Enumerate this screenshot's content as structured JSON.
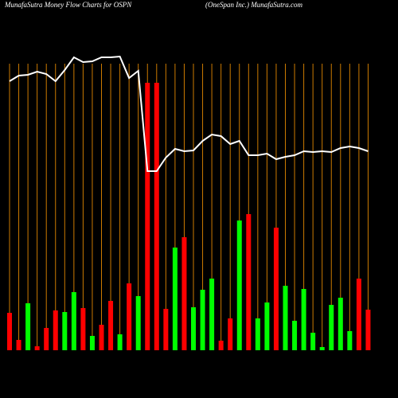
{
  "chart_data": {
    "type": "bar",
    "title": "MunafaSutra  Money Flow  Charts for OSPN",
    "subtitle": "(OneSpan  Inc.) MunafaSutra.com",
    "categories": [
      null,
      null,
      null,
      null,
      null,
      null,
      null,
      null,
      null,
      null,
      null,
      null,
      null,
      null,
      null,
      null,
      null,
      null,
      null,
      null,
      null,
      null,
      null,
      null,
      null,
      null,
      null,
      null,
      null,
      null,
      null,
      null,
      null,
      null,
      null,
      null,
      null,
      null,
      null,
      null
    ],
    "values": [
      47,
      13,
      59,
      5,
      28,
      50,
      48,
      73,
      53,
      18,
      32,
      62,
      20,
      84,
      68,
      336,
      336,
      52,
      129,
      142,
      54,
      76,
      90,
      12,
      40,
      163,
      171,
      40,
      60,
      154,
      81,
      37,
      77,
      22,
      4,
      57,
      66,
      24,
      90,
      51
    ],
    "colors": [
      "#ff0000",
      "#ff0000",
      "#00ff00",
      "#ff0000",
      "#ff0000",
      "#ff0000",
      "#00ff00",
      "#00ff00",
      "#ff0000",
      "#00ff00",
      "#ff0000",
      "#ff0000",
      "#00ff00",
      "#ff0000",
      "#00ff00",
      "#ff0000",
      "#ff0000",
      "#ff0000",
      "#00ff00",
      "#ff0000",
      "#00ff00",
      "#00ff00",
      "#00ff00",
      "#ff0000",
      "#ff0000",
      "#00ff00",
      "#ff0000",
      "#00ff00",
      "#00ff00",
      "#ff0000",
      "#00ff00",
      "#00ff00",
      "#00ff00",
      "#00ff00",
      "#00ff00",
      "#00ff00",
      "#00ff00",
      "#00ff00",
      "#ff0000",
      "#ff0000"
    ],
    "line": {
      "color": "#ffffff",
      "values": [
        338,
        345,
        346,
        350,
        347,
        338,
        352,
        368,
        362,
        363,
        368,
        368,
        369,
        342,
        351,
        225,
        225,
        242,
        253,
        250,
        251,
        263,
        271,
        269,
        259,
        263,
        245,
        245,
        247,
        240,
        243,
        245,
        250,
        249,
        250,
        249,
        254,
        256,
        254,
        250
      ]
    },
    "ylim": [
      0,
      370
    ],
    "grid_color": "#cc7a00"
  }
}
